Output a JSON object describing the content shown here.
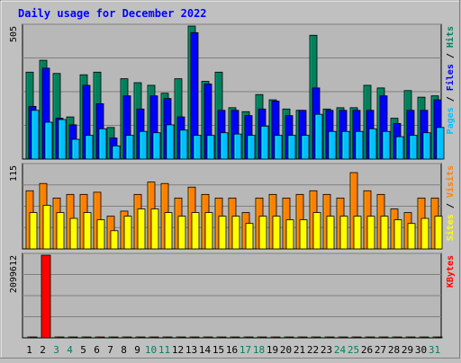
{
  "title": "Daily usage for December 2022",
  "colors": {
    "background": "#c0c0c0",
    "plot": "#b8b8b8",
    "title": "#0000ff",
    "hits": "#00805c",
    "files": "#0000ff",
    "pages": "#00c0ff",
    "visits": "#ff8000",
    "sites": "#ffff00",
    "kbytes": "#ff0000",
    "weekend_label": "#00805c",
    "weekday_label": "#000000"
  },
  "chart_data": [
    {
      "type": "bar",
      "name": "hits-files-pages",
      "ymax_label": "505",
      "legend": [
        {
          "key": "pages",
          "text": "Pages"
        },
        {
          "key": "files",
          "text": "Files"
        },
        {
          "key": "hits",
          "text": "Hits"
        }
      ],
      "categories": [
        "1",
        "2",
        "3",
        "4",
        "5",
        "6",
        "7",
        "8",
        "9",
        "10",
        "11",
        "12",
        "13",
        "14",
        "15",
        "16",
        "17",
        "18",
        "19",
        "20",
        "21",
        "22",
        "23",
        "24",
        "25",
        "26",
        "27",
        "28",
        "29",
        "30",
        "31"
      ],
      "ylim": [
        0,
        505
      ],
      "series": [
        {
          "key": "hits",
          "values": [
            330,
            375,
            325,
            160,
            320,
            330,
            120,
            305,
            290,
            280,
            250,
            305,
            505,
            295,
            330,
            195,
            180,
            245,
            225,
            190,
            185,
            470,
            190,
            195,
            195,
            280,
            270,
            155,
            260,
            235,
            240
          ]
        },
        {
          "key": "files",
          "values": [
            200,
            345,
            155,
            130,
            280,
            210,
            80,
            240,
            190,
            240,
            230,
            160,
            480,
            285,
            185,
            185,
            165,
            190,
            220,
            165,
            185,
            270,
            185,
            185,
            185,
            185,
            240,
            135,
            185,
            185,
            225
          ]
        },
        {
          "key": "pages",
          "values": [
            185,
            140,
            150,
            75,
            90,
            115,
            50,
            90,
            105,
            100,
            130,
            110,
            90,
            90,
            100,
            95,
            90,
            125,
            90,
            90,
            90,
            170,
            105,
            105,
            105,
            115,
            105,
            85,
            90,
            100,
            120
          ]
        }
      ]
    },
    {
      "type": "bar",
      "name": "visits-sites",
      "ymax_label": "115",
      "legend": [
        {
          "key": "sites",
          "text": "Sites"
        },
        {
          "key": "visits",
          "text": "Visits"
        }
      ],
      "categories": [
        "1",
        "2",
        "3",
        "4",
        "5",
        "6",
        "7",
        "8",
        "9",
        "10",
        "11",
        "12",
        "13",
        "14",
        "15",
        "16",
        "17",
        "18",
        "19",
        "20",
        "21",
        "22",
        "23",
        "24",
        "25",
        "26",
        "27",
        "28",
        "29",
        "30",
        "31"
      ],
      "ylim": [
        0,
        115
      ],
      "series": [
        {
          "key": "visits",
          "values": [
            80,
            90,
            70,
            75,
            75,
            78,
            45,
            52,
            75,
            92,
            90,
            70,
            85,
            75,
            70,
            70,
            50,
            70,
            75,
            70,
            75,
            80,
            75,
            70,
            105,
            80,
            75,
            55,
            50,
            70,
            70
          ]
        },
        {
          "key": "sites",
          "values": [
            50,
            60,
            50,
            42,
            50,
            40,
            25,
            45,
            55,
            55,
            50,
            45,
            50,
            50,
            45,
            45,
            35,
            45,
            45,
            40,
            40,
            50,
            45,
            45,
            45,
            45,
            45,
            40,
            35,
            42,
            45
          ]
        }
      ]
    },
    {
      "type": "bar",
      "name": "kbytes",
      "ymax_label": "2099612",
      "legend": [
        {
          "key": "kbytes",
          "text": "KBytes"
        }
      ],
      "categories": [
        "1",
        "2",
        "3",
        "4",
        "5",
        "6",
        "7",
        "8",
        "9",
        "10",
        "11",
        "12",
        "13",
        "14",
        "15",
        "16",
        "17",
        "18",
        "19",
        "20",
        "21",
        "22",
        "23",
        "24",
        "25",
        "26",
        "27",
        "28",
        "29",
        "30",
        "31"
      ],
      "ylim": [
        0,
        2099612
      ],
      "series": [
        {
          "key": "kbytes",
          "values": [
            11000,
            2099612,
            11000,
            11000,
            11000,
            11000,
            11000,
            11000,
            11000,
            11000,
            11000,
            11000,
            11000,
            11000,
            11000,
            11000,
            11000,
            11000,
            11000,
            11000,
            11000,
            11000,
            11000,
            11000,
            11000,
            11000,
            11000,
            11000,
            11000,
            11000,
            11000
          ]
        }
      ]
    }
  ],
  "weekend_days": [
    "3",
    "4",
    "10",
    "11",
    "17",
    "18",
    "24",
    "25",
    "31"
  ]
}
